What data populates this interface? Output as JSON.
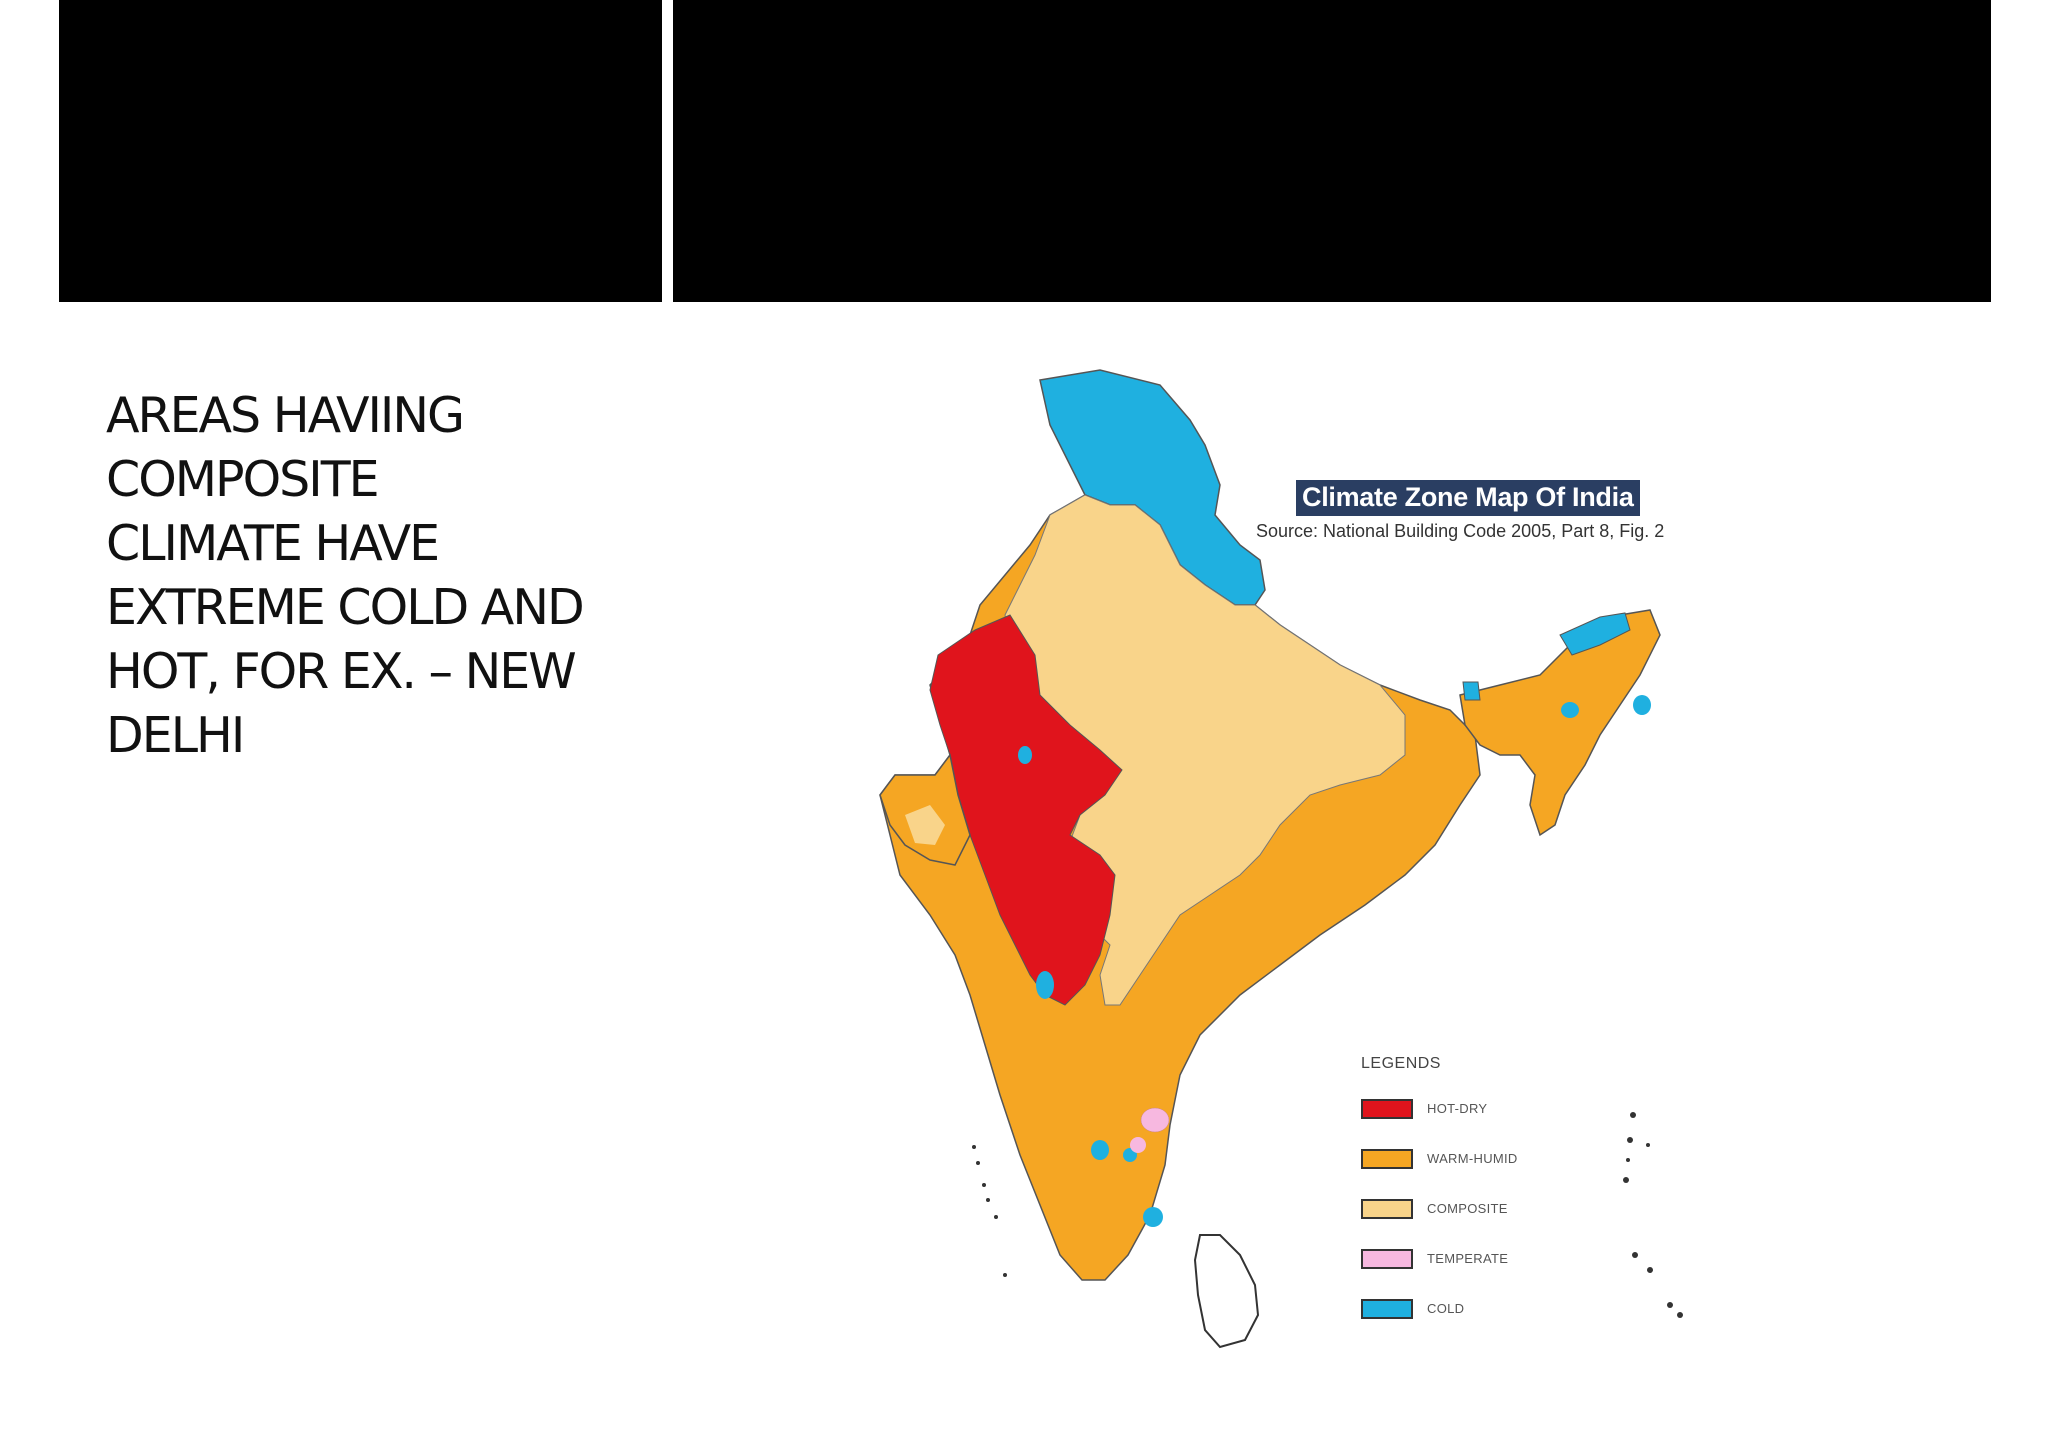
{
  "slide": {
    "body_text": "AREAS HAVIING\nCOMPOSITE\nCLIMATE HAVE\nEXTREME COLD AND\nHOT, FOR EX. – NEW\nDELHI"
  },
  "map": {
    "title": "Climate Zone Map Of India",
    "source": "Source: National Building Code 2005, Part 8, Fig. 2",
    "legend_title": "LEGENDS",
    "legend": [
      {
        "label": "HOT-DRY",
        "color": "#e0141c"
      },
      {
        "label": "WARM-HUMID",
        "color": "#f5a623"
      },
      {
        "label": "COMPOSITE",
        "color": "#f9d48a"
      },
      {
        "label": "TEMPERATE",
        "color": "#f7b8e0"
      },
      {
        "label": "COLD",
        "color": "#1fb0e0"
      }
    ]
  }
}
